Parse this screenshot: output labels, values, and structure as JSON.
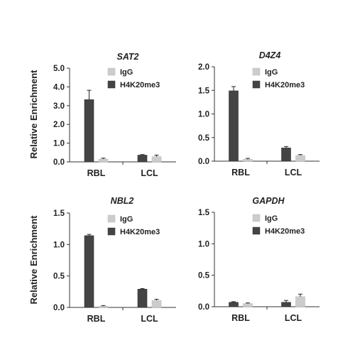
{
  "chart_data": [
    {
      "type": "bar",
      "title": "SAT2",
      "ylabel": "Relative Enrichment",
      "categories": [
        "RBL",
        "LCL"
      ],
      "ylim": [
        0,
        5
      ],
      "yticks": [
        "0.0",
        "1.0",
        "2.0",
        "3.0",
        "4.0",
        "5.0"
      ],
      "series": [
        {
          "name": "H4K20me3",
          "color": "#444444",
          "values": [
            3.32,
            0.36
          ],
          "errors": [
            0.5,
            0.03
          ]
        },
        {
          "name": "IgG",
          "color": "#cccccc",
          "values": [
            0.15,
            0.28
          ],
          "errors": [
            0.05,
            0.08
          ]
        }
      ],
      "legend": "top"
    },
    {
      "type": "bar",
      "title": "D4Z4",
      "ylabel": "",
      "categories": [
        "RBL",
        "LCL"
      ],
      "ylim": [
        0,
        2
      ],
      "yticks": [
        "0.0",
        "0.5",
        "1.0",
        "1.5",
        "2.0"
      ],
      "series": [
        {
          "name": "H4K20me3",
          "color": "#444444",
          "values": [
            1.49,
            0.28
          ],
          "errors": [
            0.09,
            0.03
          ]
        },
        {
          "name": "IgG",
          "color": "#cccccc",
          "values": [
            0.04,
            0.12
          ],
          "errors": [
            0.02,
            0.02
          ]
        }
      ],
      "legend": "top"
    },
    {
      "type": "bar",
      "title": "NBL2",
      "ylabel": "Relative Enrichment",
      "categories": [
        "RBL",
        "LCL"
      ],
      "ylim": [
        0,
        1.5
      ],
      "yticks": [
        "0.0",
        "0.5",
        "1.0",
        "1.5"
      ],
      "series": [
        {
          "name": "H4K20me3",
          "color": "#444444",
          "values": [
            1.14,
            0.29
          ],
          "errors": [
            0.02,
            0.01
          ]
        },
        {
          "name": "IgG",
          "color": "#cccccc",
          "values": [
            0.02,
            0.11
          ],
          "errors": [
            0.01,
            0.02
          ]
        }
      ],
      "legend": "top"
    },
    {
      "type": "bar",
      "title": "GAPDH",
      "ylabel": "",
      "categories": [
        "RBL",
        "LCL"
      ],
      "ylim": [
        0,
        1.5
      ],
      "yticks": [
        "0.0",
        "0.5",
        "1.0",
        "1.5"
      ],
      "series": [
        {
          "name": "H4K20me3",
          "color": "#444444",
          "values": [
            0.07,
            0.07
          ],
          "errors": [
            0.01,
            0.03
          ]
        },
        {
          "name": "IgG",
          "color": "#cccccc",
          "values": [
            0.05,
            0.16
          ],
          "errors": [
            0.01,
            0.04
          ]
        }
      ],
      "legend": "top"
    }
  ],
  "legend": {
    "items": [
      {
        "name": "IgG",
        "color": "#cccccc"
      },
      {
        "name": "H4K20me3",
        "color": "#444444"
      }
    ]
  }
}
